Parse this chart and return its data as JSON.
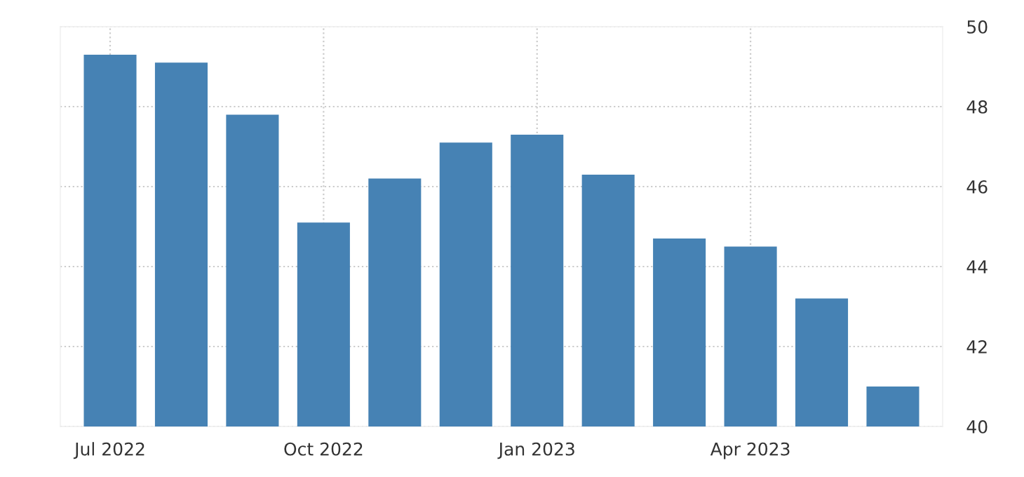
{
  "chart_data": {
    "type": "bar",
    "categories": [
      "Jul 2022",
      null,
      null,
      "Oct 2022",
      null,
      null,
      "Jan 2023",
      null,
      null,
      "Apr 2023",
      null,
      null
    ],
    "values": [
      49.3,
      49.1,
      47.8,
      45.1,
      46.2,
      47.1,
      47.3,
      46.3,
      44.7,
      44.5,
      43.2,
      41.0
    ],
    "color": "#4682b4",
    "ylim": [
      40,
      50
    ],
    "yticks": [
      40,
      42,
      44,
      46,
      48,
      50
    ],
    "grid": true,
    "legend": false
  }
}
